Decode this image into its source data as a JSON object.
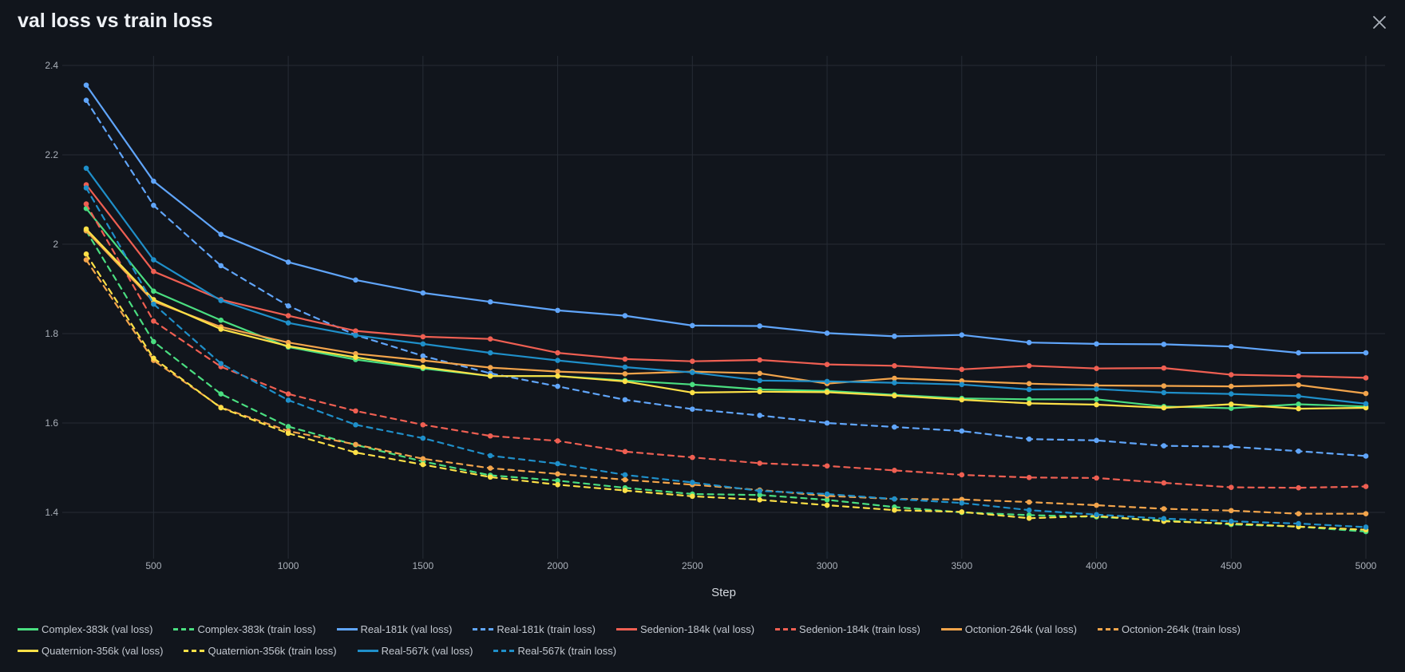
{
  "header": {
    "title": "val loss vs train loss",
    "close_icon": "close-icon"
  },
  "colors": {
    "background": "#11151c",
    "grid": "#262c35",
    "axis_text": "#aab0b9"
  },
  "chart_data": {
    "type": "line",
    "title": "val loss vs train loss",
    "xlabel": "Step",
    "ylabel": "",
    "xlim": [
      250,
      5000
    ],
    "ylim": [
      1.33,
      2.42
    ],
    "xticks": [
      500,
      1000,
      1500,
      2000,
      2500,
      3000,
      3500,
      4000,
      4500,
      5000
    ],
    "yticks": [
      1.4,
      1.6,
      1.8,
      2,
      2.2,
      2.4
    ],
    "ytick_labels": [
      "1.4",
      "1.6",
      "1.8",
      "2",
      "2.2",
      "2.4"
    ],
    "grid": true,
    "legend_position": "bottom-left",
    "x": [
      250,
      500,
      750,
      1000,
      1250,
      1500,
      1750,
      2000,
      2250,
      2500,
      2750,
      3000,
      3250,
      3500,
      3750,
      4000,
      4250,
      4500,
      4750,
      5000
    ],
    "series": [
      {
        "name": "Complex-383k (val loss)",
        "color": "#4ade80",
        "dash": false,
        "values": [
          2.08,
          1.895,
          1.83,
          1.77,
          1.742,
          1.722,
          1.705,
          1.705,
          1.695,
          1.686,
          1.675,
          1.672,
          1.663,
          1.655,
          1.653,
          1.653,
          1.637,
          1.633,
          1.642,
          1.637
        ]
      },
      {
        "name": "Complex-383k (train loss)",
        "color": "#4ade80",
        "dash": true,
        "values": [
          2.03,
          1.782,
          1.665,
          1.592,
          1.551,
          1.514,
          1.483,
          1.471,
          1.455,
          1.441,
          1.439,
          1.428,
          1.412,
          1.4,
          1.394,
          1.39,
          1.382,
          1.373,
          1.368,
          1.357
        ]
      },
      {
        "name": "Real-181k (val loss)",
        "color": "#60a5fa",
        "dash": false,
        "values": [
          2.356,
          2.141,
          2.022,
          1.96,
          1.92,
          1.891,
          1.871,
          1.852,
          1.84,
          1.818,
          1.817,
          1.801,
          1.794,
          1.797,
          1.78,
          1.777,
          1.776,
          1.771,
          1.757,
          1.757
        ]
      },
      {
        "name": "Real-181k (train loss)",
        "color": "#60a5fa",
        "dash": true,
        "values": [
          2.322,
          2.087,
          1.952,
          1.862,
          1.797,
          1.75,
          1.711,
          1.682,
          1.652,
          1.631,
          1.617,
          1.6,
          1.591,
          1.582,
          1.564,
          1.561,
          1.549,
          1.547,
          1.537,
          1.526
        ]
      },
      {
        "name": "Sedenion-184k (val loss)",
        "color": "#ef5f52",
        "dash": false,
        "values": [
          2.133,
          1.939,
          1.876,
          1.84,
          1.806,
          1.793,
          1.788,
          1.757,
          1.743,
          1.738,
          1.741,
          1.731,
          1.728,
          1.72,
          1.728,
          1.722,
          1.723,
          1.708,
          1.705,
          1.701
        ]
      },
      {
        "name": "Sedenion-184k (train loss)",
        "color": "#ef5f52",
        "dash": true,
        "values": [
          2.09,
          1.828,
          1.726,
          1.665,
          1.627,
          1.596,
          1.571,
          1.56,
          1.536,
          1.523,
          1.51,
          1.504,
          1.494,
          1.484,
          1.478,
          1.477,
          1.466,
          1.456,
          1.455,
          1.458
        ]
      },
      {
        "name": "Octonion-264k (val loss)",
        "color": "#f2a44b",
        "dash": false,
        "values": [
          2.03,
          1.872,
          1.815,
          1.78,
          1.755,
          1.74,
          1.724,
          1.715,
          1.71,
          1.715,
          1.711,
          1.688,
          1.7,
          1.694,
          1.688,
          1.684,
          1.683,
          1.682,
          1.685,
          1.666
        ]
      },
      {
        "name": "Octonion-264k (train loss)",
        "color": "#f2a44b",
        "dash": true,
        "values": [
          1.965,
          1.74,
          1.635,
          1.582,
          1.552,
          1.52,
          1.499,
          1.486,
          1.473,
          1.462,
          1.45,
          1.437,
          1.43,
          1.429,
          1.423,
          1.416,
          1.408,
          1.404,
          1.397,
          1.397
        ]
      },
      {
        "name": "Quaternion-356k (val loss)",
        "color": "#fde047",
        "dash": false,
        "values": [
          2.034,
          1.876,
          1.81,
          1.772,
          1.747,
          1.725,
          1.705,
          1.705,
          1.693,
          1.668,
          1.67,
          1.669,
          1.661,
          1.652,
          1.644,
          1.641,
          1.634,
          1.642,
          1.632,
          1.634
        ]
      },
      {
        "name": "Quaternion-356k (train loss)",
        "color": "#fde047",
        "dash": true,
        "values": [
          1.978,
          1.745,
          1.634,
          1.577,
          1.534,
          1.507,
          1.479,
          1.462,
          1.449,
          1.436,
          1.428,
          1.416,
          1.405,
          1.401,
          1.387,
          1.392,
          1.38,
          1.375,
          1.368,
          1.361
        ]
      },
      {
        "name": "Real-567k (val loss)",
        "color": "#1f8fc9",
        "dash": false,
        "values": [
          2.17,
          1.965,
          1.874,
          1.824,
          1.796,
          1.777,
          1.757,
          1.74,
          1.725,
          1.713,
          1.695,
          1.693,
          1.69,
          1.686,
          1.675,
          1.676,
          1.668,
          1.665,
          1.66,
          1.643
        ]
      },
      {
        "name": "Real-567k (train loss)",
        "color": "#1f8fc9",
        "dash": true,
        "values": [
          2.126,
          1.866,
          1.733,
          1.651,
          1.596,
          1.566,
          1.527,
          1.509,
          1.484,
          1.467,
          1.448,
          1.441,
          1.43,
          1.421,
          1.405,
          1.395,
          1.386,
          1.38,
          1.375,
          1.367
        ]
      }
    ]
  }
}
